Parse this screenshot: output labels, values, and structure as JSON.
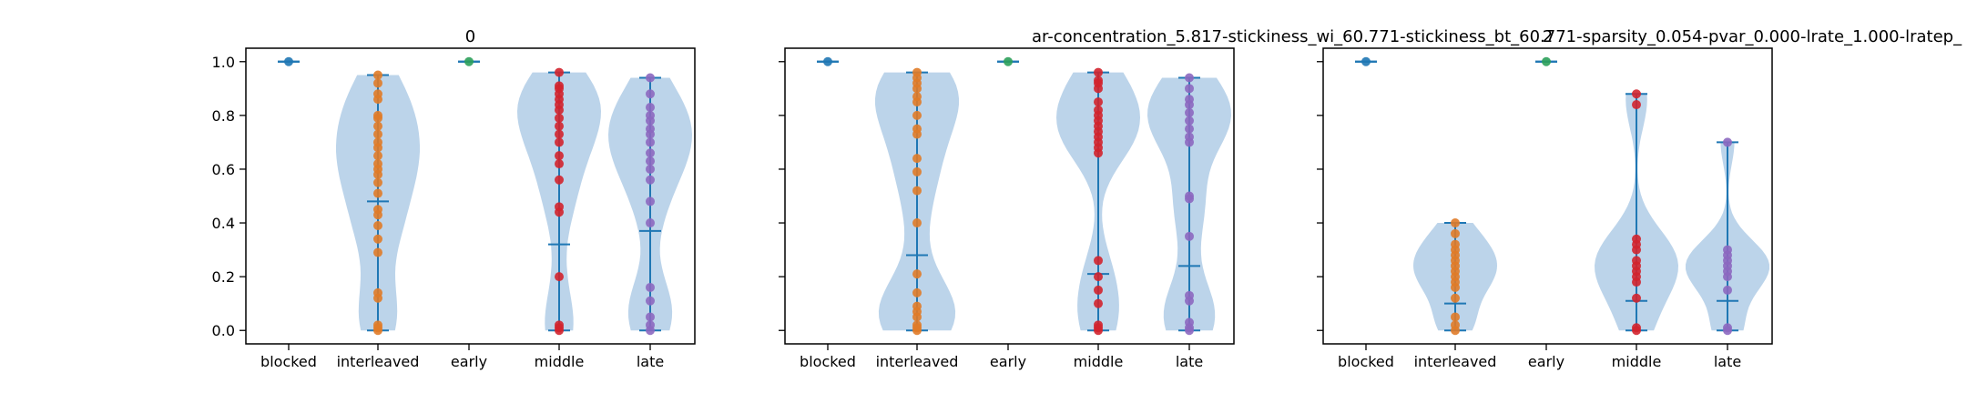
{
  "figure": {
    "subplot_titles": [
      "0",
      "",
      "2"
    ],
    "suptitle": "ar-concentration_5.817-stickiness_wi_60.771-stickiness_bt_60.771-sparsity_0.054-pvar_0.000-lrate_1.000-lratep_"
  },
  "colors": {
    "violin_fill": "#8fb8dc",
    "whisker": "#1f77b4",
    "blocked": "#1f77b4",
    "interleaved": "#e07b28",
    "early": "#2ca05a",
    "middle": "#d2232d",
    "late": "#8c68c0"
  },
  "chart_data": [
    {
      "type": "violin",
      "title": "0",
      "categories": [
        "blocked",
        "interleaved",
        "early",
        "middle",
        "late"
      ],
      "ylim": [
        -0.05,
        1.05
      ],
      "yticks": [
        "0.0",
        "0.2",
        "0.4",
        "0.6",
        "0.8",
        "1.0"
      ],
      "show_ytick_labels": true,
      "series": [
        {
          "category": "blocked",
          "min": 1.0,
          "max": 1.0,
          "mean": 1.0,
          "points": [
            1.0
          ]
        },
        {
          "category": "interleaved",
          "min": 0.0,
          "max": 0.95,
          "mean": 0.48,
          "points": [
            0.0,
            0.01,
            0.02,
            0.12,
            0.14,
            0.29,
            0.34,
            0.39,
            0.43,
            0.45,
            0.51,
            0.55,
            0.58,
            0.6,
            0.62,
            0.65,
            0.68,
            0.7,
            0.73,
            0.76,
            0.79,
            0.8,
            0.86,
            0.88,
            0.92,
            0.95
          ]
        },
        {
          "category": "early",
          "min": 1.0,
          "max": 1.0,
          "mean": 1.0,
          "points": [
            1.0
          ]
        },
        {
          "category": "middle",
          "min": 0.0,
          "max": 0.96,
          "mean": 0.32,
          "points": [
            0.0,
            0.01,
            0.02,
            0.2,
            0.44,
            0.46,
            0.56,
            0.62,
            0.65,
            0.7,
            0.73,
            0.76,
            0.79,
            0.82,
            0.84,
            0.86,
            0.88,
            0.9,
            0.91,
            0.96
          ]
        },
        {
          "category": "late",
          "min": 0.0,
          "max": 0.94,
          "mean": 0.37,
          "points": [
            0.0,
            0.02,
            0.05,
            0.11,
            0.16,
            0.4,
            0.48,
            0.56,
            0.6,
            0.63,
            0.66,
            0.7,
            0.73,
            0.75,
            0.78,
            0.8,
            0.83,
            0.88,
            0.94
          ]
        }
      ]
    },
    {
      "type": "violin",
      "title": "",
      "categories": [
        "blocked",
        "interleaved",
        "early",
        "middle",
        "late"
      ],
      "ylim": [
        -0.05,
        1.05
      ],
      "yticks": [
        "0.0",
        "0.2",
        "0.4",
        "0.6",
        "0.8",
        "1.0"
      ],
      "show_ytick_labels": false,
      "series": [
        {
          "category": "blocked",
          "min": 1.0,
          "max": 1.0,
          "mean": 1.0,
          "points": [
            1.0
          ]
        },
        {
          "category": "interleaved",
          "min": 0.0,
          "max": 0.96,
          "mean": 0.28,
          "points": [
            0.0,
            0.01,
            0.02,
            0.05,
            0.07,
            0.09,
            0.14,
            0.21,
            0.4,
            0.52,
            0.59,
            0.64,
            0.73,
            0.75,
            0.8,
            0.85,
            0.87,
            0.9,
            0.92,
            0.94,
            0.96
          ]
        },
        {
          "category": "early",
          "min": 1.0,
          "max": 1.0,
          "mean": 1.0,
          "points": [
            1.0
          ]
        },
        {
          "category": "middle",
          "min": 0.0,
          "max": 0.96,
          "mean": 0.21,
          "points": [
            0.0,
            0.01,
            0.02,
            0.1,
            0.15,
            0.2,
            0.26,
            0.66,
            0.68,
            0.7,
            0.72,
            0.74,
            0.76,
            0.78,
            0.8,
            0.82,
            0.85,
            0.9,
            0.92,
            0.93,
            0.96
          ]
        },
        {
          "category": "late",
          "min": 0.0,
          "max": 0.94,
          "mean": 0.24,
          "points": [
            0.0,
            0.01,
            0.03,
            0.11,
            0.13,
            0.35,
            0.49,
            0.5,
            0.7,
            0.72,
            0.75,
            0.78,
            0.81,
            0.84,
            0.86,
            0.9,
            0.94
          ]
        }
      ]
    },
    {
      "type": "violin",
      "title": "2",
      "categories": [
        "blocked",
        "interleaved",
        "early",
        "middle",
        "late"
      ],
      "ylim": [
        -0.05,
        1.05
      ],
      "yticks": [
        "0.0",
        "0.2",
        "0.4",
        "0.6",
        "0.8",
        "1.0"
      ],
      "show_ytick_labels": false,
      "series": [
        {
          "category": "blocked",
          "min": 1.0,
          "max": 1.0,
          "mean": 1.0,
          "points": [
            1.0
          ]
        },
        {
          "category": "interleaved",
          "min": 0.0,
          "max": 0.4,
          "mean": 0.1,
          "points": [
            0.0,
            0.02,
            0.05,
            0.12,
            0.16,
            0.18,
            0.2,
            0.22,
            0.24,
            0.26,
            0.28,
            0.3,
            0.32,
            0.36,
            0.4
          ]
        },
        {
          "category": "early",
          "min": 1.0,
          "max": 1.0,
          "mean": 1.0,
          "points": [
            1.0
          ]
        },
        {
          "category": "middle",
          "min": 0.0,
          "max": 0.88,
          "mean": 0.11,
          "points": [
            0.0,
            0.01,
            0.12,
            0.18,
            0.2,
            0.22,
            0.24,
            0.26,
            0.3,
            0.32,
            0.34,
            0.84,
            0.88
          ]
        },
        {
          "category": "late",
          "min": 0.0,
          "max": 0.7,
          "mean": 0.11,
          "points": [
            0.0,
            0.01,
            0.15,
            0.2,
            0.22,
            0.24,
            0.26,
            0.28,
            0.3,
            0.7
          ]
        }
      ]
    }
  ]
}
